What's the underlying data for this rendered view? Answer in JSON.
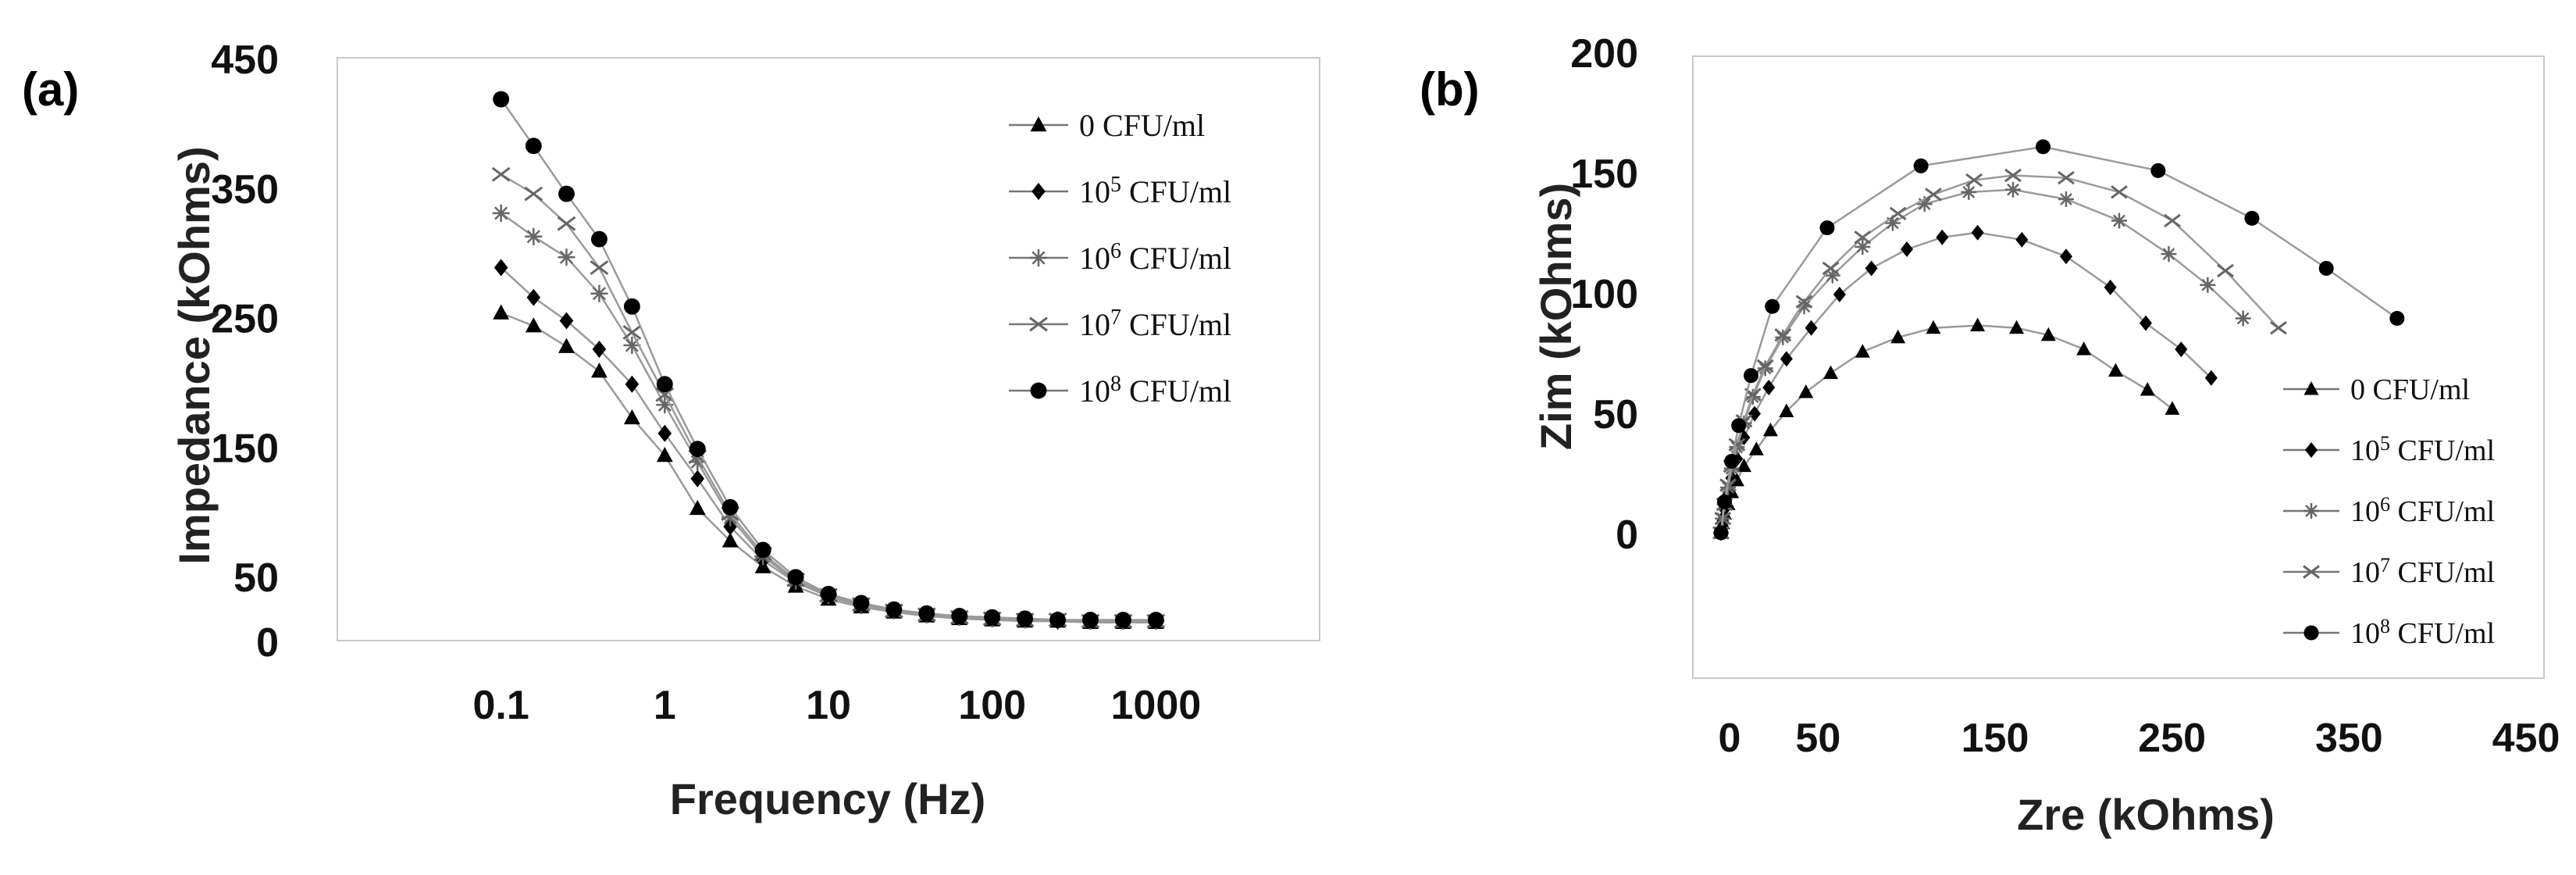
{
  "chart_data": [
    {
      "panel_label": "(a)",
      "type": "line",
      "xscale": "log",
      "xlabel": "Frequency (Hz)",
      "ylabel": "Impedance (kOhms)",
      "ylim": [
        0,
        450
      ],
      "xlim": [
        0.01,
        10000
      ],
      "xticks": [
        0.1,
        1,
        10,
        100,
        1000
      ],
      "xtick_labels": [
        "0.1",
        "1",
        "10",
        "100",
        "1000"
      ],
      "yticks": [
        0,
        50,
        150,
        250,
        350,
        450
      ],
      "ytick_labels": [
        "0",
        "50",
        "150",
        "250",
        "350",
        "450"
      ],
      "grid": false,
      "legend_position": "top-right",
      "x": [
        0.1,
        0.158,
        0.251,
        0.398,
        0.631,
        1,
        1.585,
        2.512,
        3.981,
        6.31,
        10,
        15.85,
        25.12,
        39.81,
        63.1,
        100,
        158.5,
        251.2,
        398.1,
        631,
        1000
      ],
      "series": [
        {
          "name": "0 CFU/ml",
          "marker": "triangle",
          "values": [
            253,
            243,
            227,
            208,
            172,
            143,
            102,
            77,
            57,
            42,
            32,
            26,
            22,
            19,
            17,
            16,
            15,
            15,
            14,
            14,
            14
          ]
        },
        {
          "name": "10^5 CFU/ml",
          "marker": "diamond",
          "values": [
            288,
            265,
            247,
            225,
            198,
            160,
            125,
            88,
            62,
            45,
            34,
            27,
            23,
            20,
            18,
            17,
            16,
            15,
            15,
            15,
            15
          ]
        },
        {
          "name": "10^6 CFU/ml",
          "marker": "star",
          "values": [
            330,
            312,
            296,
            268,
            228,
            182,
            138,
            95,
            65,
            46,
            35,
            28,
            23,
            20,
            18,
            17,
            16,
            16,
            15,
            15,
            15
          ]
        },
        {
          "name": "10^7 CFU/ml",
          "marker": "x",
          "values": [
            360,
            345,
            322,
            288,
            238,
            190,
            142,
            98,
            67,
            47,
            35,
            28,
            23,
            20,
            18,
            17,
            16,
            16,
            15,
            15,
            15
          ]
        },
        {
          "name": "10^8 CFU/ml",
          "marker": "circle",
          "values": [
            418,
            382,
            345,
            310,
            258,
            198,
            148,
            103,
            70,
            49,
            36,
            29,
            24,
            21,
            19,
            18,
            17,
            16,
            16,
            16,
            16
          ]
        }
      ],
      "legend_labels": [
        {
          "base": "0 CFU/ml",
          "sup": "",
          "rest": ""
        },
        {
          "base": "10",
          "sup": "5",
          "rest": " CFU/ml"
        },
        {
          "base": "10",
          "sup": "6",
          "rest": " CFU/ml"
        },
        {
          "base": "10",
          "sup": "7",
          "rest": " CFU/ml"
        },
        {
          "base": "10",
          "sup": "8",
          "rest": " CFU/ml"
        }
      ]
    },
    {
      "panel_label": "(b)",
      "type": "scatter",
      "xlabel": "Zre (kOhms)",
      "ylabel": "Zim (kOhms)",
      "xlim": [
        0,
        450
      ],
      "ylim": [
        -50,
        200
      ],
      "xticks": [
        0,
        50,
        150,
        250,
        350,
        450
      ],
      "xtick_labels": [
        "0",
        "50",
        "150",
        "250",
        "350",
        "450"
      ],
      "yticks": [
        0,
        50,
        100,
        150,
        200
      ],
      "ytick_labels": [
        "0",
        "50",
        "100",
        "150",
        "200"
      ],
      "grid": false,
      "legend_position": "bottom-right",
      "series": [
        {
          "name": "0 CFU/ml",
          "marker": "triangle",
          "x": [
            15,
            16,
            17,
            19,
            21,
            24,
            28,
            35,
            43,
            52,
            63,
            77,
            95,
            115,
            135,
            160,
            182,
            200,
            220,
            238,
            256,
            270
          ],
          "y": [
            0,
            4,
            8,
            12,
            17,
            22,
            28,
            35,
            43,
            51,
            59,
            67,
            76,
            82,
            86,
            87,
            86,
            83,
            77,
            68,
            60,
            52
          ]
        },
        {
          "name": "10^5 CFU/ml",
          "marker": "diamond",
          "x": [
            15,
            16,
            17,
            19,
            21,
            24,
            28,
            34,
            42,
            52,
            66,
            82,
            100,
            120,
            140,
            160,
            185,
            210,
            235,
            255,
            275,
            292
          ],
          "y": [
            0,
            5,
            10,
            16,
            23,
            31,
            40,
            50,
            61,
            73,
            86,
            100,
            111,
            119,
            124,
            126,
            123,
            116,
            103,
            88,
            77,
            65
          ]
        },
        {
          "name": "10^6 CFU/ml",
          "marker": "star",
          "x": [
            15,
            16,
            17,
            19,
            21,
            24,
            28,
            33,
            40,
            50,
            62,
            78,
            95,
            112,
            130,
            155,
            180,
            210,
            240,
            268,
            290,
            310
          ],
          "y": [
            0,
            6,
            12,
            19,
            27,
            36,
            46,
            57,
            69,
            82,
            95,
            108,
            120,
            130,
            138,
            143,
            144,
            140,
            131,
            117,
            104,
            90
          ]
        },
        {
          "name": "10^7 CFU/ml",
          "marker": "x",
          "x": [
            15,
            16,
            17,
            19,
            21,
            24,
            28,
            33,
            40,
            50,
            62,
            77,
            95,
            115,
            135,
            158,
            180,
            210,
            240,
            270,
            300,
            330
          ],
          "y": [
            0,
            6,
            12,
            20,
            28,
            37,
            47,
            58,
            70,
            83,
            97,
            111,
            124,
            134,
            142,
            148,
            150,
            149,
            143,
            131,
            110,
            86
          ]
        },
        {
          "name": "10^8 CFU/ml",
          "marker": "circle",
          "x": [
            15,
            17,
            21,
            25,
            32,
            44,
            75,
            128,
            197,
            262,
            315,
            357,
            397
          ],
          "y": [
            0,
            13,
            30,
            45,
            66,
            95,
            128,
            154,
            162,
            152,
            132,
            111,
            90
          ]
        }
      ],
      "legend_labels": [
        {
          "base": "0 CFU/ml",
          "sup": "",
          "rest": ""
        },
        {
          "base": "10",
          "sup": "5",
          "rest": " CFU/ml"
        },
        {
          "base": "10",
          "sup": "6",
          "rest": " CFU/ml"
        },
        {
          "base": "10",
          "sup": "7",
          "rest": " CFU/ml"
        },
        {
          "base": "10",
          "sup": "8",
          "rest": " CFU/ml"
        }
      ]
    }
  ]
}
